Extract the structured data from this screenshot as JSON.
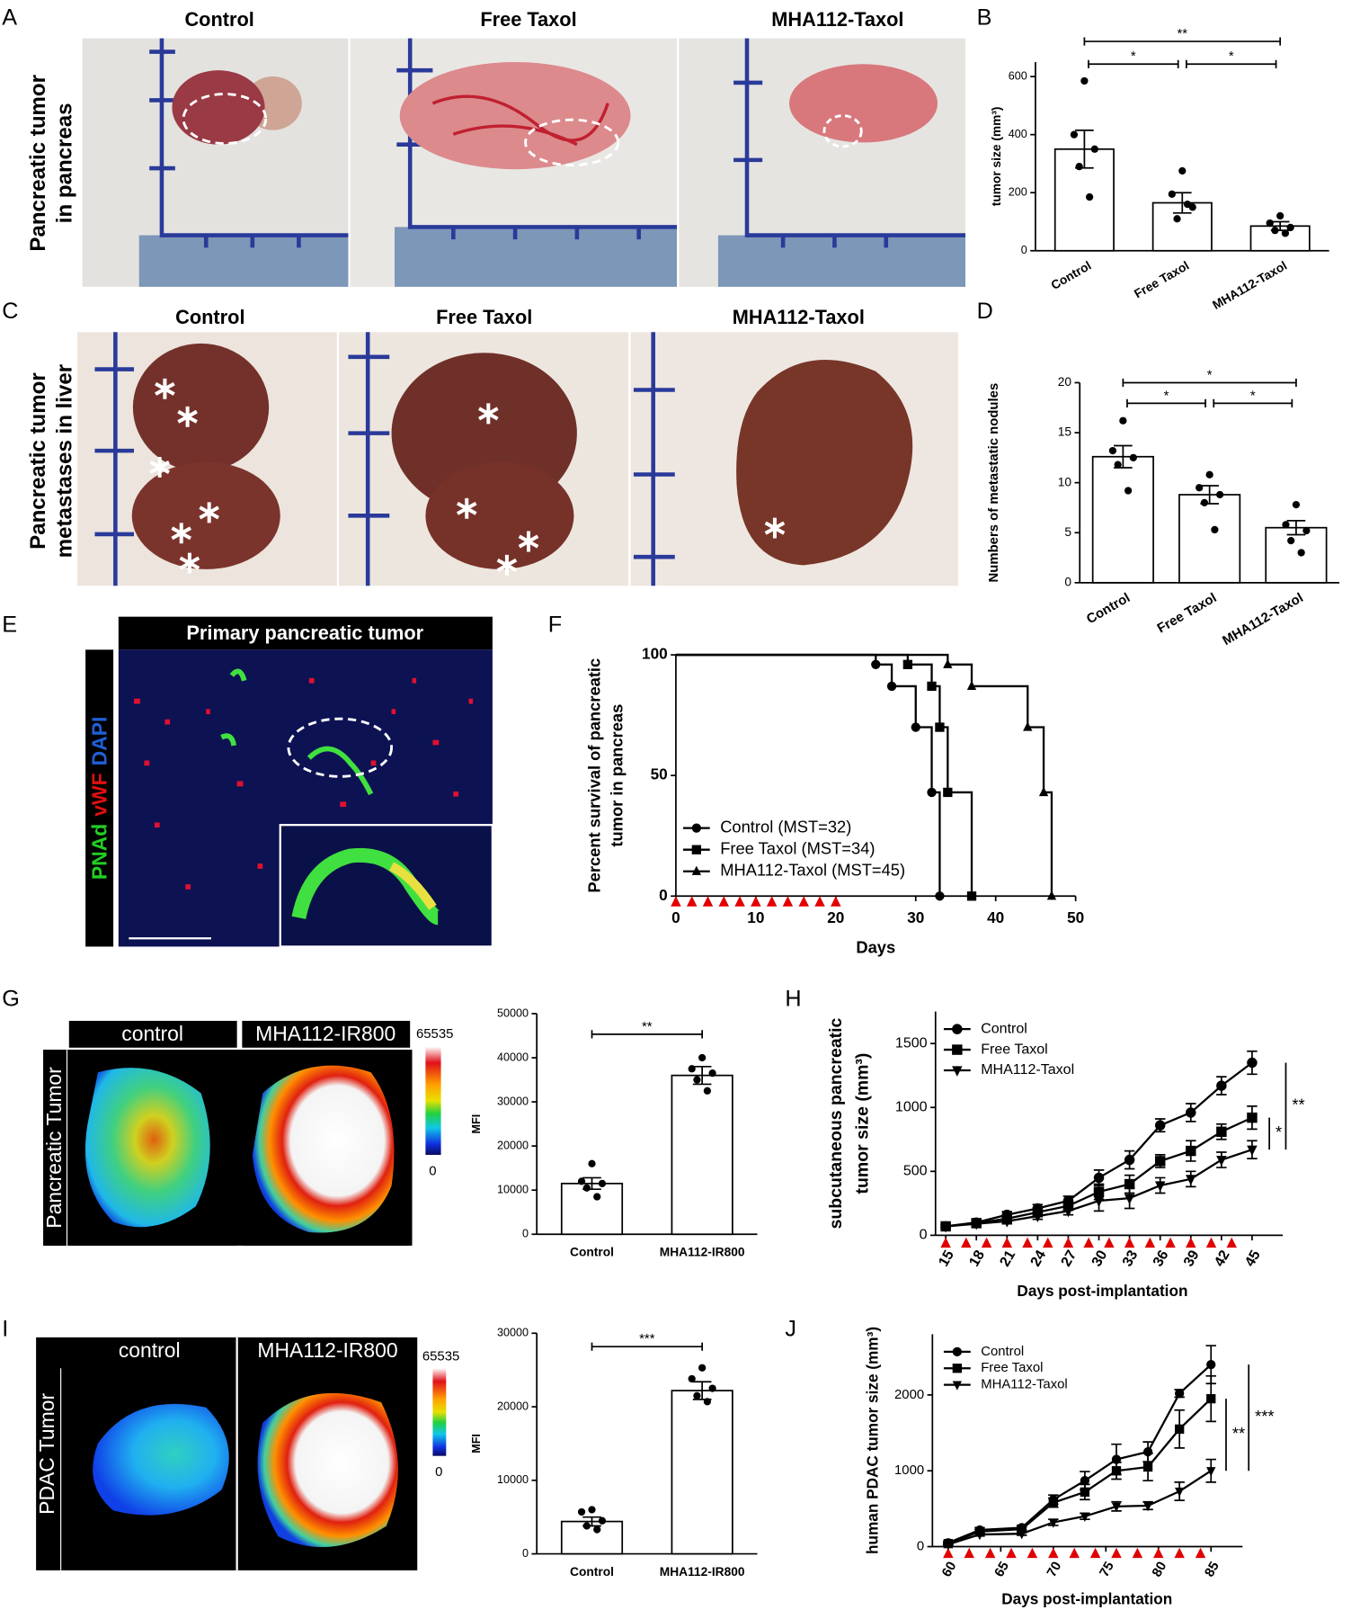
{
  "figure": {
    "A": {
      "letter": "A",
      "titles": [
        "Control",
        "Free Taxol",
        "MHA112-Taxol"
      ],
      "side_label": [
        "Pancreatic tumor",
        "in pancreas"
      ]
    },
    "B": {
      "letter": "B"
    },
    "C": {
      "letter": "C",
      "titles": [
        "Control",
        "Free Taxol",
        "MHA112-Taxol"
      ],
      "side_label": [
        "Pancreatic tumor",
        "metastases in liver"
      ]
    },
    "D": {
      "letter": "D"
    },
    "E": {
      "letter": "E",
      "title": "Primary pancreatic tumor",
      "stain": [
        {
          "text": "PNAd",
          "color": "#22d022"
        },
        {
          "text": "vWF",
          "color": "#e01010"
        },
        {
          "text": "DAPI",
          "color": "#2060d8"
        }
      ]
    },
    "F": {
      "letter": "F"
    },
    "G": {
      "letter": "G",
      "titles": [
        "control",
        "MHA112-IR800"
      ],
      "side_label": "Pancreatic Tumor",
      "scale_max": 65535,
      "scale_min": 0
    },
    "H": {
      "letter": "H"
    },
    "I": {
      "letter": "I",
      "titles": [
        "control",
        "MHA112-IR800"
      ],
      "side_label": "PDAC Tumor",
      "scale_max": 65535,
      "scale_min": 0
    },
    "J": {
      "letter": "J"
    }
  },
  "chart_data": [
    {
      "type": "bar",
      "categories": [
        "Control",
        "Free Taxol",
        "MHA112-Taxol"
      ],
      "values": [
        350,
        165,
        85
      ],
      "errors": [
        65,
        35,
        15
      ],
      "points": [
        [
          585,
          400,
          350,
          290,
          185
        ],
        [
          275,
          195,
          150,
          110,
          160
        ],
        [
          120,
          95,
          80,
          70,
          60
        ]
      ],
      "color": "#ffffff",
      "ylabel": "tumor size (mm³)",
      "ylim": [
        0,
        650
      ],
      "yticks": [
        0,
        200,
        400,
        600
      ],
      "significance": [
        {
          "from": "Control",
          "to": "MHA112-Taxol",
          "label": "**"
        },
        {
          "from": "Control",
          "to": "Free Taxol",
          "label": "*"
        },
        {
          "from": "Free Taxol",
          "to": "MHA112-Taxol",
          "label": "*"
        }
      ]
    },
    {
      "type": "bar",
      "categories": [
        "Control",
        "Free Taxol",
        "MHA112-Taxol"
      ],
      "values": [
        12.6,
        8.8,
        5.5
      ],
      "errors": [
        1.1,
        0.9,
        0.7
      ],
      "points": [
        [
          16.2,
          13.2,
          12.5,
          11.8,
          9.2
        ],
        [
          10.8,
          9.5,
          8.8,
          8.0,
          5.3
        ],
        [
          7.8,
          5.8,
          5.2,
          4.2,
          3.0
        ]
      ],
      "color": "#ffffff",
      "ylabel": "Numbers of metastatic nodules",
      "ylim": [
        0,
        20
      ],
      "yticks": [
        0,
        5,
        10,
        15,
        20
      ],
      "significance": [
        {
          "from": "Control",
          "to": "MHA112-Taxol",
          "label": "*"
        },
        {
          "from": "Control",
          "to": "Free Taxol",
          "label": "*"
        },
        {
          "from": "Free Taxol",
          "to": "MHA112-Taxol",
          "label": "*"
        }
      ]
    },
    {
      "type": "survival",
      "xlabel": "Days",
      "ylabel": [
        "Percent survival of pancreatic",
        "tumor in pancreas"
      ],
      "xlim": [
        0,
        50
      ],
      "xticks": [
        0,
        10,
        20,
        30,
        40,
        50
      ],
      "ylim": [
        0,
        100
      ],
      "yticks": [
        0,
        50,
        100
      ],
      "legend": "lower left",
      "series": [
        {
          "name": "Control (MST=32)",
          "marker": "circle",
          "color": "#000000",
          "x": [
            0,
            25,
            27,
            30,
            32,
            33
          ],
          "values": [
            100,
            96,
            87,
            70,
            43,
            0
          ]
        },
        {
          "name": "Free Taxol (MST=34)",
          "marker": "square",
          "color": "#000000",
          "x": [
            0,
            29,
            32,
            33,
            34,
            37
          ],
          "values": [
            100,
            96,
            87,
            70,
            43,
            0
          ]
        },
        {
          "name": "MHA112-Taxol (MST=45)",
          "marker": "triangle",
          "color": "#000000",
          "x": [
            0,
            34,
            37,
            44,
            46,
            47
          ],
          "values": [
            100,
            96,
            87,
            70,
            43,
            0
          ]
        }
      ],
      "treatment_days": [
        0,
        2,
        4,
        6,
        8,
        10,
        12,
        14,
        16,
        18,
        20
      ],
      "treatment_color": "#e00000"
    },
    {
      "type": "bar",
      "categories": [
        "Control",
        "MHA112-IR800"
      ],
      "values": [
        11500,
        36000
      ],
      "errors": [
        1300,
        2000
      ],
      "points": [
        [
          16000,
          12000,
          11500,
          10500,
          8500
        ],
        [
          40000,
          37500,
          36500,
          35000,
          32500
        ]
      ],
      "color": "#ffffff",
      "ylabel": "MFI",
      "ylim": [
        0,
        50000
      ],
      "yticks": [
        0,
        10000,
        20000,
        30000,
        40000,
        50000
      ],
      "significance": [
        {
          "from": "Control",
          "to": "MHA112-IR800",
          "label": "**"
        }
      ]
    },
    {
      "type": "line",
      "xlabel": "Days post-implantation",
      "ylabel": [
        "subcutaneous pancreatic",
        "tumor size (mm³)"
      ],
      "x": [
        15,
        18,
        21,
        24,
        27,
        30,
        33,
        36,
        39,
        42,
        45
      ],
      "xlim": [
        14,
        48
      ],
      "xticks": [
        15,
        18,
        21,
        24,
        27,
        30,
        33,
        36,
        39,
        42,
        45
      ],
      "ylim": [
        0,
        1750
      ],
      "yticks": [
        0,
        500,
        1000,
        1500
      ],
      "legend": "upper left",
      "series": [
        {
          "name": "Control",
          "marker": "circle",
          "color": "#000000",
          "values": [
            70,
            100,
            160,
            210,
            270,
            450,
            590,
            860,
            960,
            1170,
            1350
          ],
          "errors": [
            15,
            20,
            25,
            30,
            35,
            60,
            70,
            50,
            70,
            70,
            90
          ]
        },
        {
          "name": "Free Taxol",
          "marker": "square",
          "color": "#000000",
          "values": [
            70,
            95,
            130,
            180,
            230,
            340,
            400,
            580,
            660,
            810,
            920
          ],
          "errors": [
            10,
            15,
            20,
            25,
            30,
            60,
            70,
            50,
            80,
            60,
            90
          ]
        },
        {
          "name": "MHA112-Taxol",
          "marker": "triangle-down",
          "color": "#000000",
          "values": [
            70,
            90,
            110,
            150,
            190,
            270,
            290,
            390,
            440,
            590,
            670
          ],
          "errors": [
            10,
            15,
            20,
            25,
            30,
            80,
            80,
            60,
            60,
            60,
            70
          ]
        }
      ],
      "treatment_days": [
        15,
        17,
        19,
        21,
        23,
        25,
        27,
        29,
        31,
        33,
        35,
        37,
        39,
        41,
        43
      ],
      "treatment_color": "#e00000",
      "significance": [
        {
          "from": "Free Taxol",
          "to": "MHA112-Taxol",
          "label": "*"
        },
        {
          "from": "Control",
          "to": "MHA112-Taxol",
          "label": "**"
        }
      ]
    },
    {
      "type": "bar",
      "categories": [
        "Control",
        "MHA112-IR800"
      ],
      "values": [
        4400,
        22200
      ],
      "errors": [
        600,
        1200
      ],
      "points": [
        [
          6000,
          5700,
          4500,
          3800,
          3300
        ],
        [
          25300,
          23800,
          22500,
          21500,
          20700
        ]
      ],
      "color": "#ffffff",
      "ylabel": "MFI",
      "ylim": [
        0,
        30000
      ],
      "yticks": [
        0,
        10000,
        20000,
        30000
      ],
      "significance": [
        {
          "from": "Control",
          "to": "MHA112-IR800",
          "label": "***"
        }
      ]
    },
    {
      "type": "line",
      "xlabel": "Days post-implantation",
      "ylabel": "human PDAC tumor size (mm³)",
      "x": [
        60,
        63,
        67,
        70,
        73,
        76,
        79,
        82,
        85
      ],
      "xlim": [
        58.5,
        88
      ],
      "xticks": [
        60,
        65,
        70,
        75,
        80,
        85
      ],
      "ylim": [
        0,
        2800
      ],
      "yticks": [
        0,
        1000,
        2000
      ],
      "legend": "upper left",
      "series": [
        {
          "name": "Control",
          "marker": "circle",
          "color": "#000000",
          "values": [
            50,
            220,
            250,
            620,
            870,
            1150,
            1250,
            2020,
            2400
          ],
          "errors": [
            20,
            30,
            30,
            60,
            120,
            200,
            130,
            50,
            250
          ]
        },
        {
          "name": "Free Taxol",
          "marker": "square",
          "color": "#000000",
          "values": [
            40,
            200,
            230,
            580,
            720,
            1000,
            1050,
            1550,
            1950
          ],
          "errors": [
            15,
            25,
            30,
            60,
            100,
            110,
            180,
            250,
            300
          ]
        },
        {
          "name": "MHA112-Taxol",
          "marker": "triangle-down",
          "color": "#000000",
          "values": [
            30,
            160,
            170,
            320,
            400,
            530,
            540,
            730,
            1000
          ],
          "errors": [
            10,
            20,
            20,
            40,
            40,
            60,
            50,
            120,
            150
          ]
        }
      ],
      "treatment_days": [
        60,
        62,
        64,
        66,
        68,
        70,
        72,
        74,
        76,
        78,
        80,
        82,
        84
      ],
      "treatment_color": "#e00000",
      "significance": [
        {
          "from": "Free Taxol",
          "to": "MHA112-Taxol",
          "label": "**"
        },
        {
          "from": "Control",
          "to": "MHA112-Taxol",
          "label": "***"
        }
      ]
    }
  ]
}
